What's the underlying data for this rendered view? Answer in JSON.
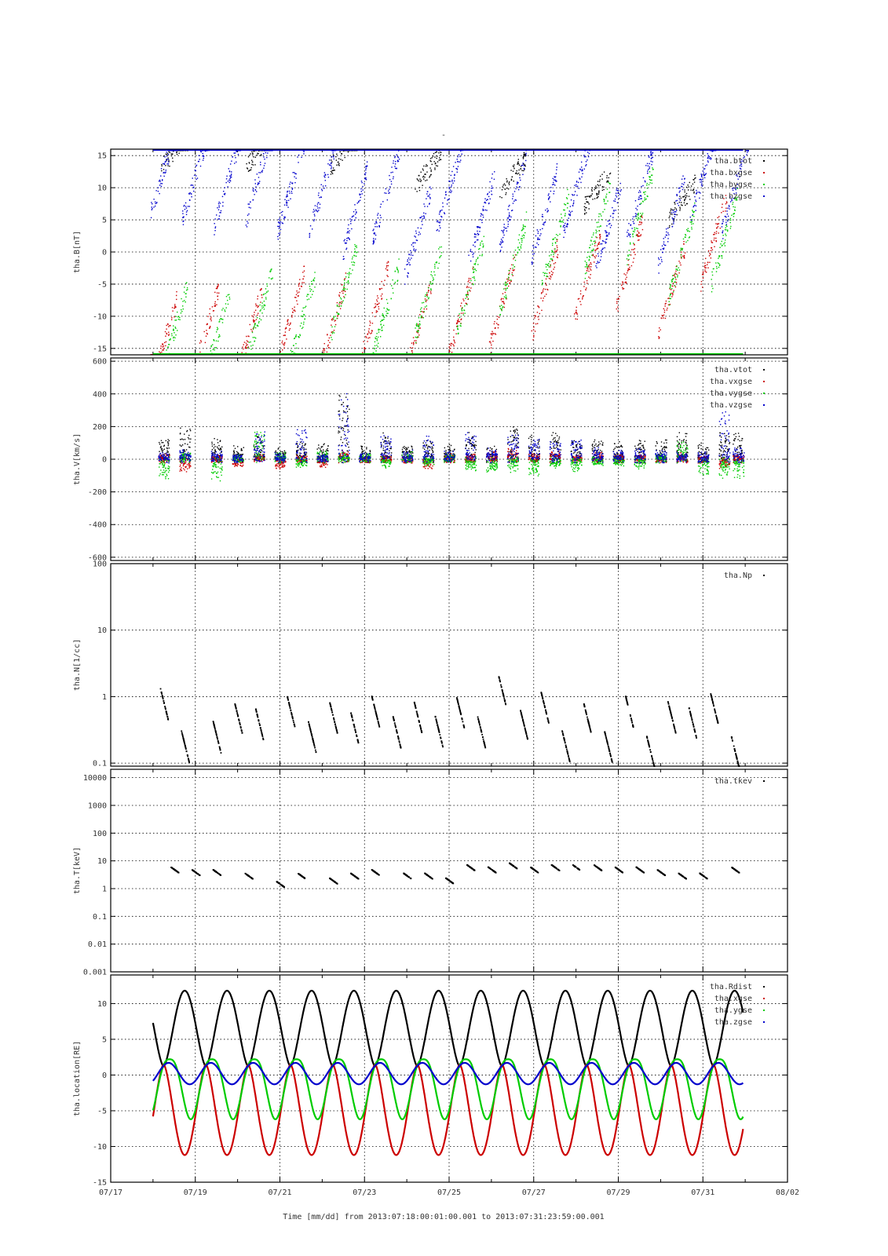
{
  "figure": {
    "title": "-",
    "xlabel": "Time [mm/dd]  from 2013:07:18:00:01:00.001  to  2013:07:31:23:59:00.001",
    "x_ticks": [
      "07/17",
      "07/19",
      "07/21",
      "07/23",
      "07/25",
      "07/27",
      "07/29",
      "07/31",
      "08/02"
    ],
    "x_range_days_from_jul17": [
      0,
      16
    ],
    "colors": {
      "black": "#000000",
      "red": "#cc0000",
      "green": "#00cc00",
      "blue": "#0000cc"
    }
  },
  "chart_data": [
    {
      "type": "scatter",
      "ylabel": "tha.B[nT]",
      "ylim": [
        -16,
        16
      ],
      "yscale": "linear",
      "y_ticks": [
        "15",
        "10",
        "5",
        "0",
        "-5",
        "-10",
        "-15"
      ],
      "legend": [
        "tha.btot",
        "tha.bxgse",
        "tha.bygse",
        "tha.bzgse"
      ],
      "grid": true,
      "series": [
        {
          "name": "tha.btot",
          "color": "black",
          "note": "mostly clipped above 16 nT",
          "x": [
            "07/18 12:00",
            "07/20 12:00",
            "07/22 12:00",
            "07/24 12:00",
            "07/26 12:00",
            "07/28 12:00",
            "07/30 12:00"
          ],
          "values": [
            16,
            16,
            16,
            13,
            12,
            10,
            8
          ]
        },
        {
          "name": "tha.bxgse",
          "color": "red",
          "x": [
            "07/18 06:00",
            "07/19 06:00",
            "07/20 06:00",
            "07/21 06:00",
            "07/22 06:00",
            "07/23 06:00",
            "07/24 06:00",
            "07/25 06:00",
            "07/26 06:00",
            "07/27 06:00",
            "07/28 06:00",
            "07/29 06:00",
            "07/30 06:00",
            "07/31 06:00"
          ],
          "values": [
            -14,
            -12,
            -13,
            -10,
            -11,
            -9,
            -12,
            -10,
            -8,
            -6,
            -4,
            -2,
            -6,
            2
          ]
        },
        {
          "name": "tha.bygse",
          "color": "green",
          "x": [
            "07/18 12:00",
            "07/19 12:00",
            "07/20 12:00",
            "07/21 12:00",
            "07/22 12:00",
            "07/23 12:00",
            "07/24 12:00",
            "07/25 12:00",
            "07/26 12:00",
            "07/27 12:00",
            "07/28 12:00",
            "07/29 12:00",
            "07/30 12:00",
            "07/31 12:00"
          ],
          "values": [
            -12,
            -13,
            -10,
            -11,
            -6,
            -9,
            -6,
            -5,
            -2,
            2,
            4,
            6,
            0,
            2
          ]
        },
        {
          "name": "tha.bzgse",
          "color": "blue",
          "x": [
            "07/18 06:00",
            "07/19 00:00",
            "07/19 18:00",
            "07/20 12:00",
            "07/21 06:00",
            "07/22 00:00",
            "07/22 18:00",
            "07/23 12:00",
            "07/24 06:00",
            "07/25 00:00",
            "07/25 18:00",
            "07/26 12:00",
            "07/27 06:00",
            "07/28 00:00",
            "07/28 18:00",
            "07/29 12:00",
            "07/30 06:00",
            "07/31 00:00",
            "07/31 18:00"
          ],
          "values": [
            13,
            12,
            11,
            12,
            10,
            10,
            6,
            9,
            3,
            10,
            5,
            8,
            6,
            10,
            4,
            9,
            5,
            12,
            10
          ]
        }
      ]
    },
    {
      "type": "scatter",
      "ylabel": "tha.V[km/s]",
      "ylim": [
        -620,
        620
      ],
      "yscale": "linear",
      "y_ticks": [
        "600",
        "400",
        "200",
        "0",
        "-200",
        "-400",
        "-600"
      ],
      "legend": [
        "tha.vtot",
        "tha.vxgse",
        "tha.vygse",
        "tha.vzgse"
      ],
      "grid": true,
      "bursts_x": [
        "07/18 06:00",
        "07/18 18:00",
        "07/19 12:00",
        "07/20 00:00",
        "07/20 12:00",
        "07/21 00:00",
        "07/21 12:00",
        "07/22 00:00",
        "07/22 12:00",
        "07/23 00:00",
        "07/23 12:00",
        "07/24 00:00",
        "07/24 12:00",
        "07/25 00:00",
        "07/25 12:00",
        "07/26 00:00",
        "07/26 12:00",
        "07/27 00:00",
        "07/27 12:00",
        "07/28 00:00",
        "07/28 12:00",
        "07/29 00:00",
        "07/29 12:00",
        "07/30 00:00",
        "07/30 12:00",
        "07/31 00:00",
        "07/31 12:00",
        "07/31 20:00"
      ],
      "series": [
        {
          "name": "tha.vtot",
          "color": "black",
          "values": [
            120,
            180,
            120,
            80,
            140,
            60,
            110,
            80,
            400,
            80,
            150,
            90,
            120,
            80,
            150,
            70,
            200,
            140,
            160,
            120,
            110,
            100,
            110,
            120,
            150,
            90,
            160,
            150
          ]
        },
        {
          "name": "tha.vxgse",
          "color": "red",
          "values": [
            20,
            -60,
            10,
            -40,
            20,
            -50,
            10,
            -30,
            40,
            0,
            10,
            0,
            -40,
            20,
            30,
            40,
            60,
            30,
            40,
            20,
            30,
            20,
            20,
            10,
            30,
            0,
            -40,
            20
          ]
        },
        {
          "name": "tha.vygse",
          "color": "green",
          "values": [
            -120,
            30,
            -120,
            20,
            180,
            40,
            -30,
            40,
            30,
            20,
            -40,
            30,
            -20,
            20,
            -60,
            -80,
            -60,
            -80,
            -40,
            -60,
            -20,
            -30,
            -40,
            20,
            100,
            -80,
            -100,
            -120
          ]
        },
        {
          "name": "tha.vzgse",
          "color": "blue",
          "values": [
            30,
            50,
            40,
            20,
            160,
            30,
            200,
            20,
            400,
            30,
            150,
            40,
            140,
            40,
            160,
            60,
            150,
            120,
            110,
            130,
            60,
            50,
            60,
            50,
            30,
            40,
            300,
            60
          ]
        }
      ]
    },
    {
      "type": "scatter",
      "ylabel": "tha.N[1/cc]",
      "ylim": [
        0.09,
        100
      ],
      "yscale": "log",
      "y_ticks": [
        "100",
        "10",
        "1",
        "0.1"
      ],
      "legend": [
        "tha.Np"
      ],
      "grid": true,
      "series": [
        {
          "name": "tha.Np",
          "color": "black",
          "x": [
            "07/18 06:00",
            "07/18 18:00",
            "07/19 12:00",
            "07/20 00:00",
            "07/20 12:00",
            "07/21 06:00",
            "07/21 18:00",
            "07/22 06:00",
            "07/22 18:00",
            "07/23 06:00",
            "07/23 18:00",
            "07/24 06:00",
            "07/24 18:00",
            "07/25 06:00",
            "07/25 18:00",
            "07/26 06:00",
            "07/26 18:00",
            "07/27 06:00",
            "07/27 18:00",
            "07/28 06:00",
            "07/28 18:00",
            "07/29 06:00",
            "07/29 18:00",
            "07/30 06:00",
            "07/30 18:00",
            "07/31 06:00",
            "07/31 18:00"
          ],
          "values": [
            0.8,
            0.18,
            0.25,
            0.5,
            0.4,
            0.6,
            0.25,
            0.5,
            0.35,
            0.6,
            0.3,
            0.5,
            0.3,
            0.6,
            0.3,
            1.2,
            0.4,
            0.7,
            0.18,
            0.5,
            0.18,
            0.6,
            0.15,
            0.5,
            0.4,
            0.7,
            0.15
          ]
        }
      ]
    },
    {
      "type": "scatter",
      "ylabel": "tha.T[keV]",
      "ylim": [
        0.001,
        20000
      ],
      "yscale": "log",
      "y_ticks": [
        "10000",
        "1000",
        "100",
        "10",
        "1",
        "0.1",
        "0.01",
        "0.001"
      ],
      "legend": [
        "tha.tkev"
      ],
      "grid": true,
      "series": [
        {
          "name": "tha.tkev",
          "color": "black",
          "x": [
            "07/18 12:00",
            "07/19 00:00",
            "07/19 12:00",
            "07/20 06:00",
            "07/21 00:00",
            "07/21 12:00",
            "07/22 06:00",
            "07/22 18:00",
            "07/23 06:00",
            "07/24 00:00",
            "07/24 12:00",
            "07/25 00:00",
            "07/25 12:00",
            "07/26 00:00",
            "07/26 12:00",
            "07/27 00:00",
            "07/27 12:00",
            "07/28 00:00",
            "07/28 12:00",
            "07/29 00:00",
            "07/29 12:00",
            "07/30 00:00",
            "07/30 12:00",
            "07/31 00:00",
            "07/31 18:00"
          ],
          "values": [
            5,
            4,
            4,
            3,
            1.5,
            3,
            2,
            3,
            4,
            3,
            3,
            2,
            6,
            5,
            7,
            5,
            6,
            6,
            6,
            5,
            5,
            4,
            3,
            3,
            5
          ]
        }
      ]
    },
    {
      "type": "line",
      "ylabel": "tha.location[RE]",
      "ylim": [
        -15,
        14
      ],
      "yscale": "linear",
      "y_ticks": [
        "10",
        "5",
        "0",
        "-5",
        "-10",
        "-15"
      ],
      "legend": [
        "tha.Rdist",
        "tha.xgse",
        "tha.ygse",
        "tha.zgse"
      ],
      "grid": true,
      "orbit_period_days": 1.0,
      "series": [
        {
          "name": "tha.Rdist",
          "color": "black",
          "min": 1.2,
          "max": 11.8,
          "apogee_times": [
            "07/18 18:00",
            "07/19 18:00",
            "07/20 18:00",
            "07/21 18:00",
            "07/22 18:00",
            "07/23 18:00",
            "07/24 18:00",
            "07/25 18:00",
            "07/26 18:00",
            "07/27 18:00",
            "07/28 18:00",
            "07/29 18:00",
            "07/30 18:00"
          ]
        },
        {
          "name": "tha.xgse",
          "color": "red",
          "min": -11.2,
          "max": 1.5
        },
        {
          "name": "tha.ygse",
          "color": "green",
          "min": -6.2,
          "max": 2.2
        },
        {
          "name": "tha.zgse",
          "color": "blue",
          "min": -1.3,
          "max": 1.7
        }
      ]
    }
  ]
}
